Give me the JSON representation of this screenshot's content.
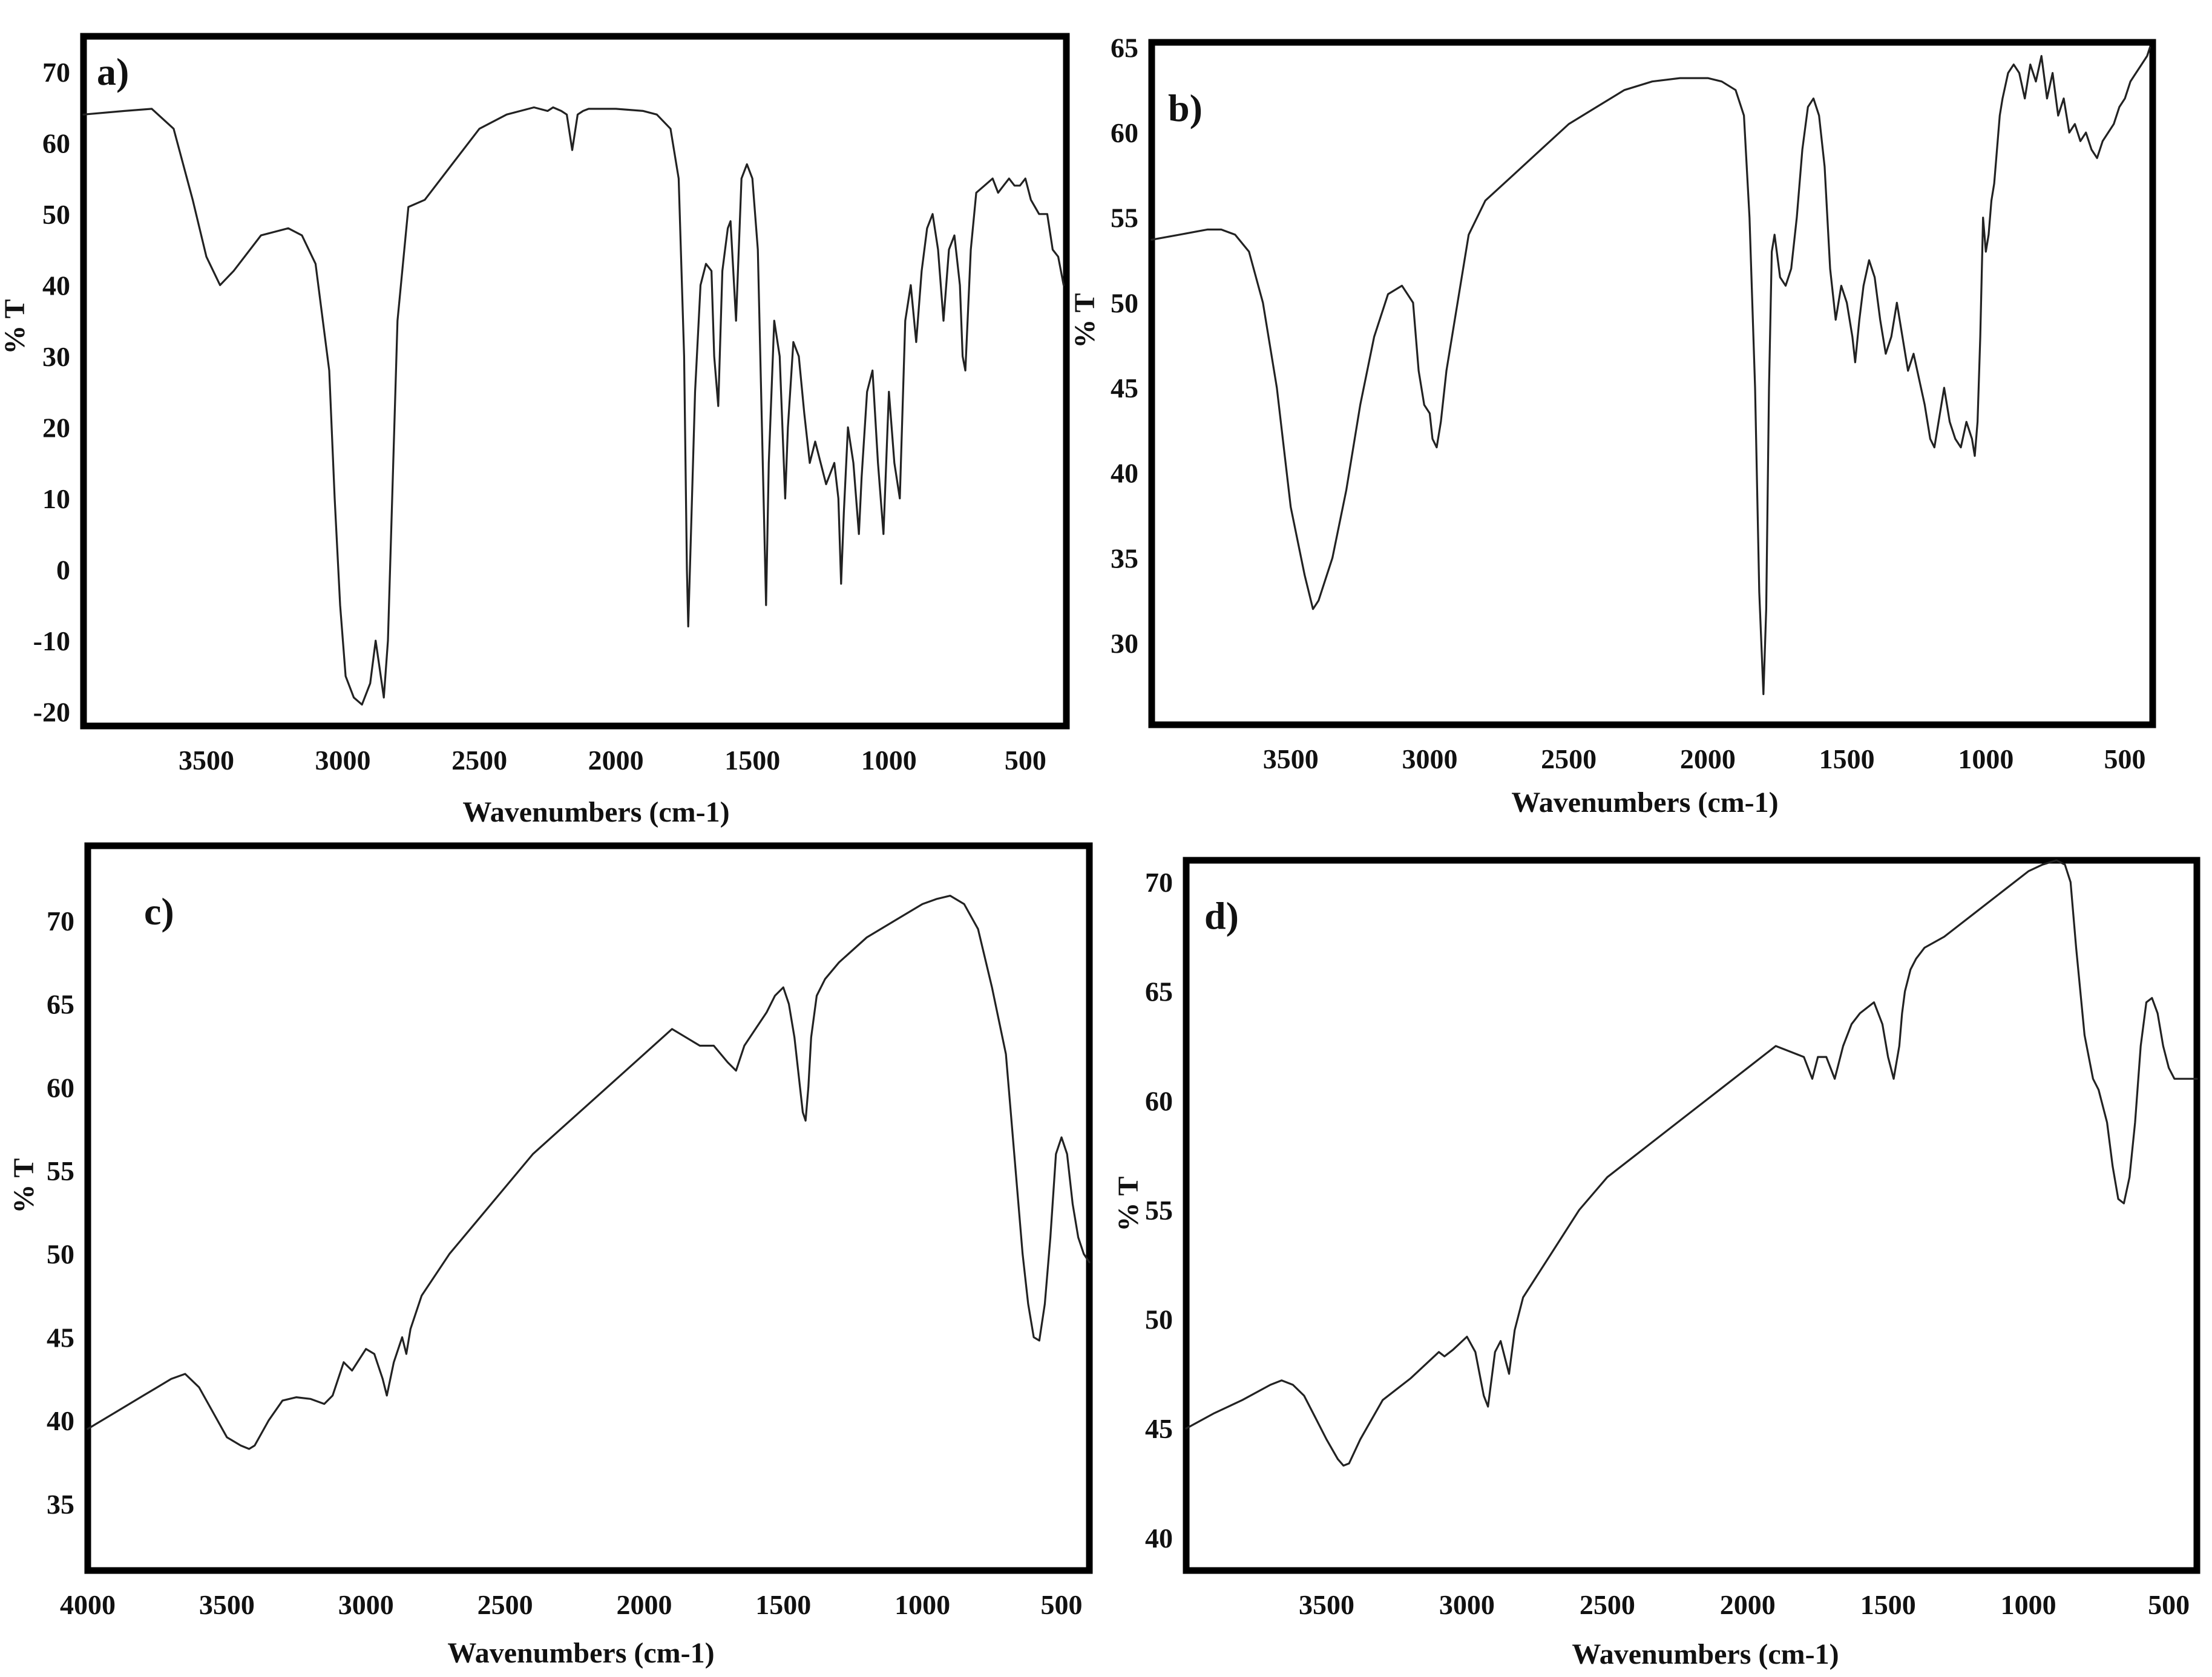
{
  "chart_data": [
    {
      "type": "line",
      "panel_label": "a)",
      "xlabel": "Wavenumbers (cm-1)",
      "ylabel": "% T",
      "xlim": [
        3950,
        350
      ],
      "ylim": [
        -22,
        75
      ],
      "x_reversed": true,
      "grid": false,
      "xticks": [
        3500,
        3000,
        2500,
        2000,
        1500,
        1000,
        500
      ],
      "yticks": [
        70,
        60,
        50,
        40,
        30,
        20,
        10,
        0,
        -10,
        -20
      ],
      "series": [
        {
          "x": [
            3950,
            3800,
            3700,
            3620,
            3550,
            3500,
            3450,
            3400,
            3300,
            3200,
            3150,
            3100,
            3050,
            3030,
            3010,
            2990,
            2960,
            2930,
            2900,
            2880,
            2865,
            2850,
            2835,
            2800,
            2760,
            2700,
            2600,
            2500,
            2400,
            2300,
            2250,
            2230,
            2200,
            2180,
            2160,
            2140,
            2120,
            2100,
            2000,
            1900,
            1850,
            1800,
            1770,
            1750,
            1740,
            1735,
            1725,
            1710,
            1690,
            1670,
            1650,
            1640,
            1625,
            1610,
            1590,
            1580,
            1560,
            1540,
            1520,
            1500,
            1480,
            1465,
            1450,
            1440,
            1420,
            1400,
            1380,
            1370,
            1350,
            1330,
            1310,
            1290,
            1270,
            1250,
            1230,
            1200,
            1185,
            1175,
            1165,
            1150,
            1130,
            1110,
            1100,
            1080,
            1060,
            1040,
            1020,
            1000,
            980,
            960,
            940,
            920,
            900,
            880,
            860,
            840,
            820,
            800,
            780,
            760,
            740,
            730,
            720,
            700,
            680,
            650,
            620,
            600,
            580,
            560,
            540,
            520,
            500,
            480,
            450,
            420,
            400,
            380,
            360
          ],
          "y": [
            64,
            64.5,
            64.8,
            62,
            52,
            44,
            40,
            42,
            47,
            48,
            47,
            43,
            28,
            10,
            -5,
            -15,
            -18,
            -19,
            -16,
            -10,
            -14,
            -18,
            -10,
            35,
            51,
            52,
            57,
            62,
            64,
            65,
            64.5,
            65,
            64.5,
            64,
            59,
            64,
            64.5,
            64.8,
            64.8,
            64.5,
            64,
            62,
            55,
            30,
            0,
            -8,
            5,
            25,
            40,
            43,
            42,
            30,
            23,
            42,
            48,
            49,
            35,
            55,
            57,
            55,
            45,
            20,
            -5,
            15,
            35,
            30,
            10,
            20,
            32,
            30,
            22,
            15,
            18,
            15,
            12,
            15,
            10,
            -2,
            8,
            20,
            15,
            5,
            13,
            25,
            28,
            15,
            5,
            25,
            15,
            10,
            35,
            40,
            32,
            42,
            48,
            50,
            45,
            35,
            45,
            47,
            40,
            30,
            28,
            45,
            53,
            54,
            55,
            53,
            54,
            55,
            54,
            54,
            55,
            52,
            50,
            50,
            45,
            44,
            40
          ]
        }
      ]
    },
    {
      "type": "line",
      "panel_label": "b)",
      "xlabel": "Wavenumbers (cm-1)",
      "ylabel": "% T",
      "xlim": [
        4000,
        400
      ],
      "ylim": [
        25.2,
        65.3
      ],
      "x_reversed": true,
      "grid": false,
      "xticks": [
        3500,
        3000,
        2500,
        2000,
        1500,
        1000,
        500
      ],
      "yticks": [
        65,
        60,
        55,
        50,
        45,
        40,
        35,
        30
      ],
      "series": [
        {
          "x": [
            4000,
            3900,
            3800,
            3750,
            3700,
            3650,
            3600,
            3550,
            3500,
            3450,
            3420,
            3400,
            3350,
            3300,
            3250,
            3200,
            3150,
            3100,
            3080,
            3060,
            3040,
            3020,
            3000,
            2990,
            2975,
            2960,
            2940,
            2920,
            2900,
            2880,
            2860,
            2800,
            2700,
            2600,
            2500,
            2400,
            2300,
            2200,
            2100,
            2000,
            1950,
            1900,
            1870,
            1850,
            1830,
            1815,
            1800,
            1790,
            1780,
            1770,
            1760,
            1740,
            1720,
            1700,
            1680,
            1660,
            1640,
            1620,
            1600,
            1580,
            1560,
            1540,
            1520,
            1500,
            1480,
            1470,
            1455,
            1440,
            1420,
            1400,
            1380,
            1360,
            1340,
            1320,
            1300,
            1280,
            1260,
            1240,
            1220,
            1200,
            1185,
            1170,
            1150,
            1130,
            1110,
            1090,
            1070,
            1050,
            1040,
            1030,
            1020,
            1010,
            1000,
            990,
            980,
            970,
            960,
            950,
            940,
            920,
            900,
            880,
            860,
            840,
            820,
            800,
            780,
            760,
            740,
            720,
            700,
            680,
            660,
            640,
            620,
            600,
            580,
            560,
            540,
            520,
            500,
            480,
            460,
            440,
            420,
            410
          ],
          "y": [
            53.7,
            54,
            54.3,
            54.3,
            54,
            53,
            50,
            45,
            38,
            34,
            32,
            32.5,
            35,
            39,
            44,
            48,
            50.5,
            51,
            50.5,
            50,
            46,
            44,
            43.5,
            42,
            41.5,
            43,
            46,
            48,
            50,
            52,
            54,
            56,
            57.5,
            59,
            60.5,
            61.5,
            62.5,
            63,
            63.2,
            63.2,
            63,
            62.5,
            61,
            55,
            45,
            33,
            27,
            32,
            45,
            53,
            54,
            51.5,
            51,
            52,
            55,
            59,
            61.5,
            62,
            61,
            58,
            52,
            49,
            51,
            50,
            48,
            46.5,
            49,
            51,
            52.5,
            51.5,
            49,
            47,
            48,
            50,
            48,
            46,
            47,
            45.5,
            44,
            42,
            41.5,
            43,
            45,
            43,
            42,
            41.5,
            43,
            42,
            41,
            43,
            48,
            55,
            53,
            54,
            56,
            57,
            59,
            61,
            62,
            63.5,
            64,
            63.5,
            62,
            64,
            63,
            64.5,
            62,
            63.5,
            61,
            62,
            60,
            60.5,
            59.5,
            60,
            59,
            58.5,
            59.5,
            60,
            60.5,
            61.5,
            62,
            63,
            63.5,
            64,
            64.5,
            65
          ]
        }
      ]
    },
    {
      "type": "line",
      "panel_label": "c)",
      "xlabel": "Wavenumbers (cm-1)",
      "ylabel": "% T",
      "xlim": [
        4000,
        400
      ],
      "ylim": [
        31,
        74.5
      ],
      "x_reversed": true,
      "grid": false,
      "xticks": [
        4000,
        3500,
        3000,
        2500,
        2000,
        1500,
        1000,
        500
      ],
      "yticks": [
        70,
        65,
        60,
        55,
        50,
        45,
        40,
        35
      ],
      "series": [
        {
          "x": [
            4000,
            3900,
            3800,
            3700,
            3650,
            3600,
            3550,
            3500,
            3450,
            3420,
            3400,
            3350,
            3300,
            3250,
            3200,
            3150,
            3120,
            3080,
            3050,
            3000,
            2970,
            2940,
            2925,
            2900,
            2870,
            2855,
            2840,
            2800,
            2700,
            2600,
            2500,
            2400,
            2300,
            2200,
            2100,
            2000,
            1900,
            1800,
            1750,
            1700,
            1670,
            1640,
            1600,
            1560,
            1530,
            1500,
            1480,
            1460,
            1440,
            1430,
            1420,
            1410,
            1400,
            1380,
            1350,
            1300,
            1200,
            1100,
            1000,
            950,
            900,
            850,
            800,
            750,
            700,
            680,
            660,
            640,
            620,
            600,
            580,
            560,
            540,
            520,
            500,
            480,
            460,
            440,
            420,
            400
          ],
          "y": [
            39.5,
            40.5,
            41.5,
            42.5,
            42.8,
            42,
            40.5,
            39,
            38.5,
            38.3,
            38.5,
            40,
            41.2,
            41.4,
            41.3,
            41,
            41.5,
            43.5,
            43,
            44.3,
            44,
            42.5,
            41.5,
            43.5,
            45,
            44,
            45.5,
            47.5,
            50,
            52,
            54,
            56,
            57.5,
            59,
            60.5,
            62,
            63.5,
            62.5,
            62.5,
            61.5,
            61,
            62.5,
            63.5,
            64.5,
            65.5,
            66,
            65,
            63,
            60,
            58.5,
            58,
            60,
            63,
            65.5,
            66.5,
            67.5,
            69,
            70,
            71,
            71.3,
            71.5,
            71,
            69.5,
            66,
            62,
            58,
            54,
            50,
            47,
            45,
            44.8,
            47,
            51,
            56,
            57,
            56,
            53,
            51,
            50,
            49.5
          ]
        }
      ]
    },
    {
      "type": "line",
      "panel_label": "d)",
      "xlabel": "Wavenumbers (cm-1)",
      "ylabel": "% T",
      "xlim": [
        4000,
        400
      ],
      "ylim": [
        38.5,
        71
      ],
      "x_reversed": true,
      "grid": false,
      "xticks": [
        3500,
        3000,
        2500,
        2000,
        1500,
        1000,
        500
      ],
      "yticks": [
        70,
        65,
        60,
        55,
        50,
        45,
        40
      ],
      "series": [
        {
          "x": [
            4000,
            3900,
            3800,
            3700,
            3660,
            3620,
            3580,
            3540,
            3500,
            3460,
            3440,
            3420,
            3380,
            3300,
            3200,
            3100,
            3080,
            3050,
            3000,
            2970,
            2940,
            2925,
            2900,
            2880,
            2860,
            2850,
            2830,
            2800,
            2700,
            2600,
            2500,
            2400,
            2300,
            2200,
            2100,
            2000,
            1900,
            1800,
            1770,
            1750,
            1720,
            1690,
            1660,
            1630,
            1600,
            1550,
            1520,
            1500,
            1480,
            1460,
            1450,
            1440,
            1430,
            1420,
            1400,
            1370,
            1300,
            1200,
            1100,
            1000,
            950,
            900,
            870,
            850,
            830,
            800,
            770,
            750,
            720,
            700,
            680,
            660,
            640,
            620,
            600,
            580,
            560,
            540,
            520,
            500,
            480,
            460,
            440,
            420,
            400
          ],
          "y": [
            45,
            45.7,
            46.3,
            47,
            47.2,
            47,
            46.5,
            45.5,
            44.5,
            43.6,
            43.3,
            43.4,
            44.5,
            46.3,
            47.3,
            48.5,
            48.3,
            48.6,
            49.2,
            48.5,
            46.5,
            46,
            48.5,
            49,
            48,
            47.5,
            49.5,
            51,
            53,
            55,
            56.5,
            57.5,
            58.5,
            59.5,
            60.5,
            61.5,
            62.5,
            62,
            61,
            62,
            62,
            61,
            62.5,
            63.5,
            64,
            64.5,
            63.5,
            62,
            61,
            62.5,
            64,
            65,
            65.5,
            66,
            66.5,
            67,
            67.5,
            68.5,
            69.5,
            70.5,
            70.8,
            71,
            70.8,
            70,
            67,
            63,
            61,
            60.5,
            59,
            57,
            55.5,
            55.3,
            56.5,
            59,
            62.5,
            64.5,
            64.7,
            64,
            62.5,
            61.5,
            61,
            61,
            61,
            61,
            61
          ]
        }
      ]
    }
  ]
}
